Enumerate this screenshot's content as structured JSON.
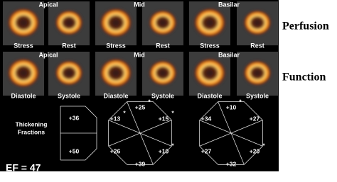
{
  "perfusion": {
    "title": "Perfusion",
    "levels": [
      "Apical",
      "Mid",
      "Basilar"
    ],
    "labels": [
      "Stress",
      "Rest",
      "Stress",
      "Rest",
      "Stress",
      "Rest"
    ]
  },
  "function": {
    "title": "Function",
    "levels": [
      "Apical",
      "Mid",
      "Basilar"
    ],
    "labels": [
      "Diastole",
      "Systole",
      "Diastole",
      "Systole",
      "Diastole",
      "Systole"
    ]
  },
  "thickening": {
    "title_lines": [
      "Thickening",
      "Fractions"
    ],
    "apical": [
      "+36",
      "+50"
    ],
    "mid": [
      {
        "label": "+25",
        "star": "*"
      },
      {
        "label": "+13",
        "star": "*"
      },
      {
        "label": "+15",
        "star": "*"
      },
      {
        "label": "+26"
      },
      {
        "label": "+10",
        "star": "*"
      },
      {
        "label": "+39"
      }
    ],
    "basal": [
      {
        "label": "+10",
        "star": "*"
      },
      {
        "label": "+34"
      },
      {
        "label": "+27"
      },
      {
        "label": "+27"
      },
      {
        "label": "+20",
        "star": "*"
      },
      {
        "label": "+32"
      }
    ]
  },
  "ef": "EF = 47"
}
